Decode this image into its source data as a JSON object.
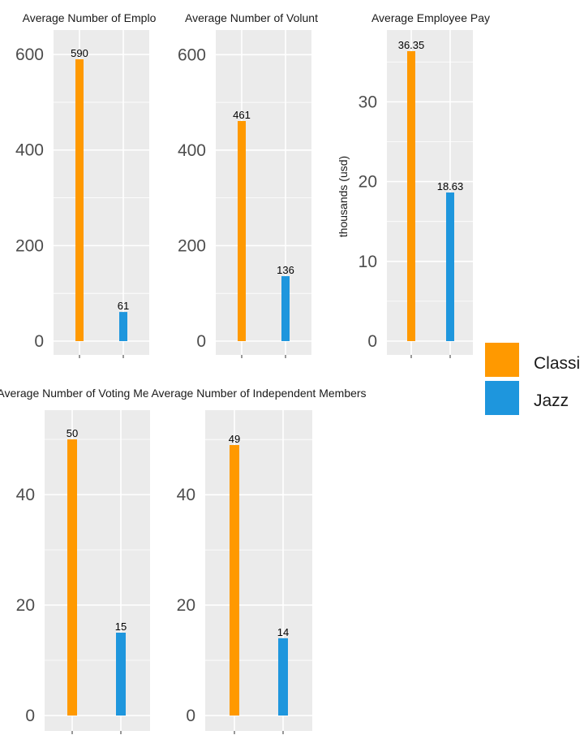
{
  "colors": {
    "classical": "#FF9900",
    "jazz": "#1E96DD",
    "panel_bg": "#EBEBEB",
    "grid": "#FFFFFF",
    "tick_text": "#4D4D4D",
    "title_text": "#1A1A1A"
  },
  "legend": {
    "placement": "right",
    "items": [
      {
        "label": "Classi",
        "color_key": "classical"
      },
      {
        "label": "Jazz",
        "color_key": "jazz"
      }
    ]
  },
  "chart_data": [
    {
      "type": "bar",
      "title": "Average Number of Emplo",
      "ylabel": "",
      "categories": [
        "Classi",
        "Jazz"
      ],
      "values": [
        590,
        61
      ],
      "data_labels": [
        "590",
        "61"
      ],
      "ylim": [
        0,
        620
      ],
      "yticks": [
        0,
        200,
        400,
        600
      ],
      "ytick_labels": [
        "0",
        "200",
        "400",
        "600"
      ],
      "grid": true
    },
    {
      "type": "bar",
      "title": "Average Number of Volunt",
      "ylabel": "",
      "categories": [
        "Classi",
        "Jazz"
      ],
      "values": [
        461,
        136
      ],
      "data_labels": [
        "461",
        "136"
      ],
      "ylim": [
        0,
        620
      ],
      "yticks": [
        0,
        200,
        400,
        600
      ],
      "ytick_labels": [
        "0",
        "200",
        "400",
        "600"
      ],
      "grid": true
    },
    {
      "type": "bar",
      "title": "Average Employee Pay",
      "ylabel": "thousands (usd)",
      "categories": [
        "Classi",
        "Jazz"
      ],
      "values": [
        36.35,
        18.63
      ],
      "data_labels": [
        "36.35",
        "18.63"
      ],
      "ylim": [
        0,
        36.35
      ],
      "yticks": [
        0,
        10,
        20,
        30
      ],
      "ytick_labels": [
        "0",
        "10",
        "20",
        "30"
      ],
      "grid": true
    },
    {
      "type": "bar",
      "title": "Average Number of Voting Me",
      "ylabel": "",
      "categories": [
        "Classi",
        "Jazz"
      ],
      "values": [
        50,
        15
      ],
      "data_labels": [
        "50",
        "15"
      ],
      "ylim": [
        0,
        50
      ],
      "yticks": [
        0,
        20,
        40
      ],
      "ytick_labels": [
        "0",
        "20",
        "40"
      ],
      "grid": true
    },
    {
      "type": "bar",
      "title": "Average Number of Independent Members",
      "ylabel": "",
      "categories": [
        "Classi",
        "Jazz"
      ],
      "values": [
        49,
        14
      ],
      "data_labels": [
        "49",
        "14"
      ],
      "ylim": [
        0,
        50
      ],
      "yticks": [
        0,
        20,
        40
      ],
      "ytick_labels": [
        "0",
        "20",
        "40"
      ],
      "grid": true
    }
  ]
}
